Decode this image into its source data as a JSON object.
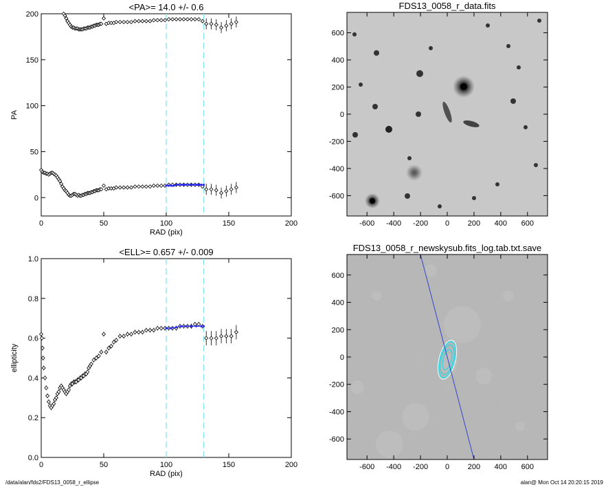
{
  "chart_data": [
    {
      "type": "scatter",
      "title": "<PA>=  14.0 +/-   0.6",
      "xlabel": "RAD (pix)",
      "ylabel": "PA",
      "xlim": [
        0,
        200
      ],
      "ylim": [
        -20,
        200
      ],
      "xticks": [
        "0",
        "50",
        "100",
        "150",
        "200"
      ],
      "yticks": [
        "0",
        "50",
        "100",
        "150",
        "200"
      ],
      "grid": false,
      "vlines": [
        100,
        130
      ],
      "annotation": {
        "mean_pa": 14.0,
        "error": 0.6
      },
      "series": [
        {
          "x": [
            0,
            1,
            2,
            3,
            4,
            5,
            6,
            7,
            8,
            9,
            10,
            11,
            12,
            13,
            14,
            15,
            16,
            17,
            18,
            19,
            20,
            21,
            22,
            23,
            24,
            25,
            26,
            27,
            28,
            29,
            30,
            31,
            32,
            33,
            34,
            35,
            36,
            37,
            38,
            39,
            40,
            41,
            42,
            43,
            44,
            45,
            46,
            47,
            48,
            50,
            52,
            54,
            56,
            58,
            60,
            63,
            66,
            69,
            72,
            75,
            78,
            81,
            84,
            87,
            90,
            93,
            96,
            99,
            102,
            105,
            108,
            111,
            114,
            117,
            120,
            123,
            126,
            129,
            132,
            136,
            140,
            144,
            148,
            152,
            156
          ],
          "y": [
            30,
            28,
            27,
            27,
            26,
            26,
            25,
            26,
            27,
            27,
            26,
            25,
            24,
            22,
            20,
            18,
            15,
            12,
            10,
            8,
            7,
            5,
            3,
            2,
            2,
            3,
            4,
            4,
            3,
            2,
            3,
            2,
            2,
            3,
            3,
            4,
            4,
            5,
            5,
            5,
            6,
            6,
            7,
            7,
            8,
            8,
            8,
            9,
            9,
            13,
            9,
            10,
            10,
            10,
            11,
            11,
            11,
            11,
            11,
            12,
            12,
            12,
            12,
            12,
            13,
            13,
            13,
            13,
            14,
            14,
            14,
            14,
            14,
            14,
            14,
            14,
            14,
            12,
            9,
            9,
            8,
            5,
            7,
            9,
            11
          ]
        },
        {
          "x": [
            18,
            19,
            20,
            21,
            22,
            23,
            24,
            25,
            26,
            27,
            28,
            29,
            30,
            31,
            32,
            33,
            34,
            35,
            36,
            37,
            38,
            39,
            40,
            41,
            42,
            43,
            44,
            45,
            46,
            47,
            48,
            50,
            52,
            54,
            56,
            58,
            60,
            63,
            66,
            69,
            72,
            75,
            78,
            81,
            84,
            87,
            90,
            93,
            96,
            99,
            102,
            105,
            108,
            111,
            114,
            117,
            120,
            123,
            126,
            129,
            132,
            136,
            140,
            144,
            148,
            152,
            156
          ],
          "y": [
            200,
            198,
            195,
            192,
            190,
            188,
            186,
            185,
            185,
            184,
            184,
            184,
            183,
            183,
            183,
            183,
            184,
            184,
            184,
            185,
            185,
            185,
            186,
            186,
            187,
            187,
            188,
            188,
            188,
            189,
            189,
            195,
            189,
            190,
            190,
            190,
            191,
            191,
            191,
            191,
            191,
            192,
            192,
            192,
            192,
            192,
            193,
            193,
            193,
            193,
            194,
            194,
            194,
            194,
            194,
            194,
            194,
            194,
            194,
            192,
            189,
            189,
            188,
            185,
            187,
            189,
            191
          ]
        }
      ],
      "fit_points": {
        "x": [
          100,
          102,
          104,
          106,
          108,
          110,
          112,
          114,
          116,
          118,
          120,
          122,
          124,
          126,
          128,
          130
        ],
        "y": [
          13,
          13,
          13,
          13,
          14,
          14,
          14,
          14,
          14,
          14,
          14,
          14,
          14,
          14,
          14,
          14
        ]
      }
    },
    {
      "type": "scatter",
      "title": "<ELL>= 0.657 +/-  0.009",
      "xlabel": "RAD (pix)",
      "ylabel": "ellipticity",
      "xlim": [
        0,
        200
      ],
      "ylim": [
        0.0,
        1.0
      ],
      "xticks": [
        "0",
        "50",
        "100",
        "150",
        "200"
      ],
      "yticks": [
        "0.0",
        "0.2",
        "0.4",
        "0.6",
        "0.8",
        "1.0"
      ],
      "grid": false,
      "vlines": [
        100,
        130
      ],
      "annotation": {
        "mean_ell": 0.657,
        "error": 0.009
      },
      "series": [
        {
          "x": [
            0,
            0.5,
            1,
            1.5,
            2,
            3,
            4,
            5,
            6,
            7,
            8,
            9,
            10,
            11,
            12,
            13,
            14,
            15,
            16,
            17,
            18,
            19,
            20,
            21,
            22,
            23,
            24,
            25,
            26,
            27,
            28,
            29,
            30,
            31,
            32,
            33,
            34,
            35,
            36,
            37,
            38,
            39,
            40,
            42,
            44,
            46,
            48,
            50,
            52,
            54,
            56,
            58,
            60,
            63,
            66,
            69,
            72,
            75,
            78,
            81,
            84,
            87,
            90,
            93,
            96,
            99,
            102,
            105,
            108,
            111,
            114,
            117,
            120,
            123,
            126,
            129,
            132,
            136,
            140,
            144,
            148,
            152,
            156
          ],
          "y": [
            0.62,
            0.6,
            0.55,
            0.5,
            0.45,
            0.4,
            0.35,
            0.31,
            0.28,
            0.26,
            0.25,
            0.26,
            0.27,
            0.29,
            0.3,
            0.32,
            0.33,
            0.35,
            0.36,
            0.35,
            0.34,
            0.33,
            0.32,
            0.33,
            0.34,
            0.36,
            0.37,
            0.37,
            0.38,
            0.38,
            0.38,
            0.39,
            0.39,
            0.4,
            0.4,
            0.41,
            0.41,
            0.42,
            0.42,
            0.43,
            0.45,
            0.46,
            0.47,
            0.49,
            0.5,
            0.51,
            0.53,
            0.62,
            0.53,
            0.55,
            0.56,
            0.58,
            0.59,
            0.61,
            0.61,
            0.62,
            0.62,
            0.63,
            0.63,
            0.63,
            0.64,
            0.64,
            0.64,
            0.65,
            0.65,
            0.65,
            0.65,
            0.65,
            0.65,
            0.66,
            0.66,
            0.66,
            0.66,
            0.67,
            0.67,
            0.66,
            0.6,
            0.6,
            0.6,
            0.61,
            0.61,
            0.61,
            0.63
          ]
        }
      ],
      "fit_points": {
        "x": [
          100,
          104,
          108,
          112,
          116,
          120,
          124,
          128,
          130
        ],
        "y": [
          0.65,
          0.65,
          0.655,
          0.66,
          0.66,
          0.66,
          0.66,
          0.66,
          0.66
        ]
      }
    },
    {
      "type": "heatmap",
      "title": "FDS13_0058_r_data.fits",
      "xlim": [
        -750,
        750
      ],
      "ylim": [
        -750,
        750
      ],
      "xticks": [
        "-600",
        "-400",
        "-200",
        "0",
        "200",
        "400",
        "600"
      ],
      "yticks": [
        "-600",
        "-400",
        "-200",
        "0",
        "200",
        "400",
        "600"
      ],
      "grid": false
    },
    {
      "type": "heatmap",
      "title": "FDS13_0058_r_newskysub.fits_log.tab.txt.save",
      "xlim": [
        -750,
        750
      ],
      "ylim": [
        -750,
        750
      ],
      "xticks": [
        "-600",
        "-400",
        "-200",
        "0",
        "200",
        "400",
        "600"
      ],
      "yticks": [
        "-600",
        "-400",
        "-200",
        "0",
        "200",
        "400",
        "600"
      ],
      "grid": false,
      "major_axis_line": {
        "x": [
          -200,
          200
        ],
        "y": [
          760,
          -760
        ]
      }
    }
  ],
  "footer": {
    "path": "/data/alan/fds2/FDS13_0058_r_ellipse",
    "user_time": "alan@  Mon Oct 14 20:20:15 2019"
  },
  "colors": {
    "points": "#000000",
    "fit": "#2a2aff",
    "vline": "#7fe3ee",
    "axis_line": "#3344cc",
    "contours": "#3fd3de"
  }
}
